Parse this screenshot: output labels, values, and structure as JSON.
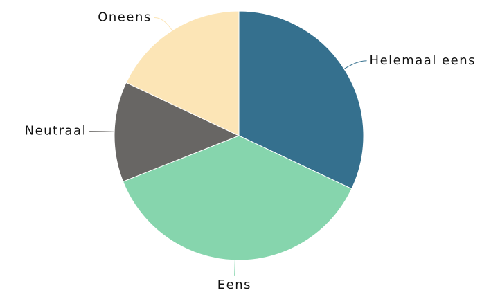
{
  "chart_data": {
    "type": "pie",
    "categories": [
      "Helemaal eens",
      "Eens",
      "Neutraal",
      "Oneens"
    ],
    "values": [
      32,
      37,
      13,
      18
    ],
    "colors": [
      "#35708e",
      "#86d5ad",
      "#686664",
      "#fce5b6"
    ]
  }
}
